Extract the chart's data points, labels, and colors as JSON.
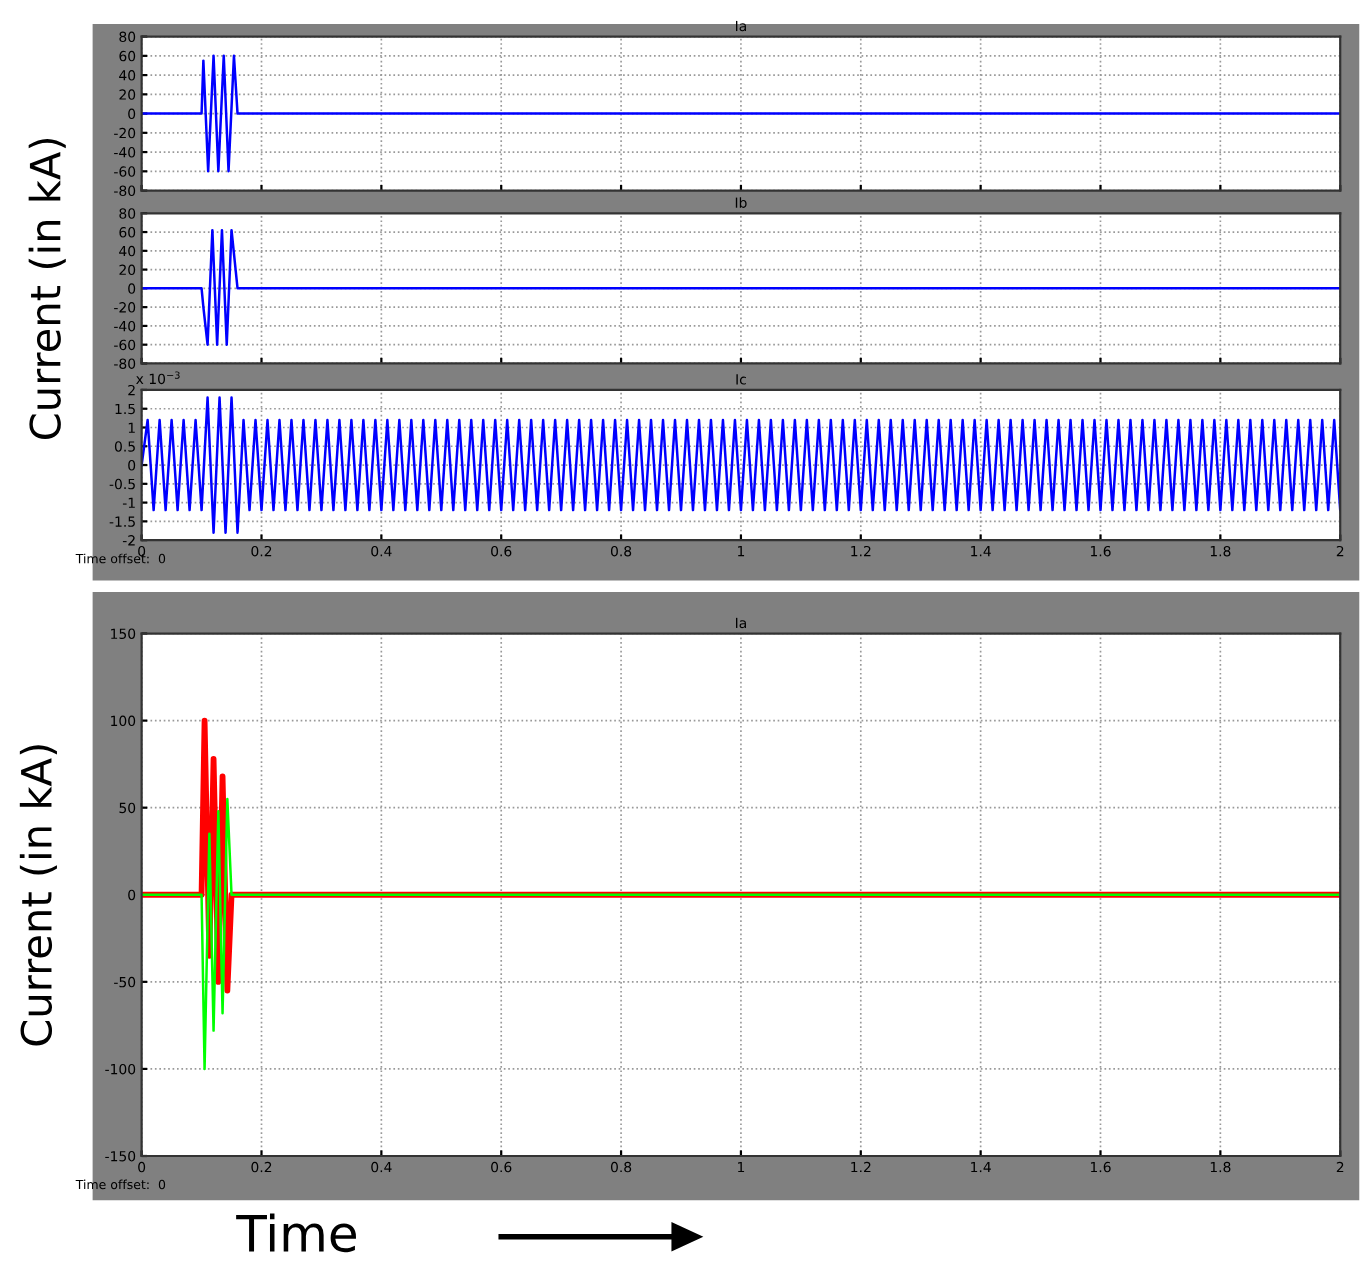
{
  "chart_data": [
    {
      "type": "line",
      "title": "Ia",
      "xlim": [
        0,
        2
      ],
      "ylim": [
        -80,
        80
      ],
      "xticks": [
        0,
        0.2,
        0.4,
        0.6,
        0.8,
        1,
        1.2,
        1.4,
        1.6,
        1.8,
        2
      ],
      "yticks": [
        -80,
        -60,
        -40,
        -20,
        0,
        20,
        40,
        60,
        80
      ],
      "tick_labels": "y",
      "grid": true,
      "series": [
        {
          "color": "#0000ff",
          "x": [
            0,
            0.1,
            0.103,
            0.111,
            0.12,
            0.128,
            0.137,
            0.145,
            0.154,
            0.16,
            2
          ],
          "values": [
            0,
            0,
            55,
            -60,
            60,
            -60,
            60,
            -60,
            60,
            0,
            0
          ]
        }
      ]
    },
    {
      "type": "line",
      "title": "Ib",
      "ylabel": "Current (in kA)",
      "xlim": [
        0,
        2
      ],
      "ylim": [
        -80,
        80
      ],
      "xticks": [
        0,
        0.2,
        0.4,
        0.6,
        0.8,
        1,
        1.2,
        1.4,
        1.6,
        1.8,
        2
      ],
      "yticks": [
        -80,
        -60,
        -40,
        -20,
        0,
        20,
        40,
        60,
        80
      ],
      "tick_labels": "y",
      "grid": true,
      "series": [
        {
          "color": "#0000ff",
          "x": [
            0,
            0.1,
            0.103,
            0.11,
            0.118,
            0.126,
            0.134,
            0.142,
            0.15,
            0.16,
            2
          ],
          "values": [
            0,
            0,
            -20,
            -60,
            62,
            -60,
            62,
            -60,
            62,
            0,
            0
          ]
        }
      ]
    },
    {
      "type": "line",
      "title": "Ic",
      "xlim": [
        0,
        2
      ],
      "ylim": [
        -2,
        2
      ],
      "xticks": [
        0,
        0.2,
        0.4,
        0.6,
        0.8,
        1,
        1.2,
        1.4,
        1.6,
        1.8,
        2
      ],
      "yticks": [
        -2,
        -1.5,
        -1,
        -0.5,
        0,
        0.5,
        1,
        1.5,
        2
      ],
      "grid": true,
      "annotations": [
        "x 10$^{−3}$",
        "Time offset:  0"
      ],
      "series": [
        {
          "color": "#0000ff",
          "x": [
            0,
            0.01,
            0.02,
            0.03,
            0.04,
            0.05,
            0.06,
            0.07,
            0.08,
            0.09,
            0.1,
            0.11,
            0.12,
            0.13,
            0.14,
            0.15,
            0.16,
            0.17,
            0.18,
            0.19,
            0.2,
            0.21,
            0.22,
            0.23,
            0.24,
            0.25,
            0.26,
            0.27,
            0.28,
            0.29,
            0.3,
            0.31,
            0.32,
            0.33,
            0.34,
            0.35,
            0.36,
            0.37,
            0.38,
            0.39,
            0.4,
            0.41,
            0.42,
            0.43,
            0.44,
            0.45,
            0.46,
            0.47,
            0.48,
            0.49,
            0.5,
            0.51,
            0.52,
            0.53,
            0.54,
            0.55,
            0.56,
            0.57,
            0.58,
            0.59,
            0.6,
            0.61,
            0.62,
            0.63,
            0.64,
            0.65,
            0.66,
            0.67,
            0.68,
            0.69,
            0.7,
            0.71,
            0.72,
            0.73,
            0.74,
            0.75,
            0.76,
            0.77,
            0.78,
            0.79,
            0.8,
            0.81,
            0.82,
            0.83,
            0.84,
            0.85,
            0.86,
            0.87,
            0.88,
            0.89,
            0.9,
            0.91,
            0.92,
            0.93,
            0.94,
            0.95,
            0.96,
            0.97,
            0.98,
            0.99,
            1,
            1.01,
            1.02,
            1.03,
            1.04,
            1.05,
            1.06,
            1.07,
            1.08,
            1.09,
            1.1,
            1.11,
            1.12,
            1.13,
            1.14,
            1.15,
            1.16,
            1.17,
            1.18,
            1.19,
            1.2,
            1.21,
            1.22,
            1.23,
            1.24,
            1.25,
            1.26,
            1.27,
            1.28,
            1.29,
            1.3,
            1.31,
            1.32,
            1.33,
            1.34,
            1.35,
            1.36,
            1.37,
            1.38,
            1.39,
            1.4,
            1.41,
            1.42,
            1.43,
            1.44,
            1.45,
            1.46,
            1.47,
            1.48,
            1.49,
            1.5,
            1.51,
            1.52,
            1.53,
            1.54,
            1.55,
            1.56,
            1.57,
            1.58,
            1.59,
            1.6,
            1.61,
            1.62,
            1.63,
            1.64,
            1.65,
            1.66,
            1.67,
            1.68,
            1.69,
            1.7,
            1.71,
            1.72,
            1.73,
            1.74,
            1.75,
            1.76,
            1.77,
            1.78,
            1.79,
            1.8,
            1.81,
            1.82,
            1.83,
            1.84,
            1.85,
            1.86,
            1.87,
            1.88,
            1.89,
            1.9,
            1.91,
            1.92,
            1.93,
            1.94,
            1.95,
            1.96,
            1.97,
            1.98,
            1.99,
            2
          ],
          "values": [
            0,
            1.2,
            -1.2,
            1.2,
            -1.2,
            1.2,
            -1.2,
            1.2,
            -1.2,
            1.2,
            -1.2,
            1.8,
            -1.8,
            1.8,
            -1.8,
            1.8,
            -1.8,
            1.2,
            -1.2,
            1.2,
            -1.2,
            1.2,
            -1.2,
            1.2,
            -1.2,
            1.2,
            -1.2,
            1.2,
            -1.2,
            1.2,
            -1.2,
            1.2,
            -1.2,
            1.2,
            -1.2,
            1.2,
            -1.2,
            1.2,
            -1.2,
            1.2,
            -1.2,
            1.2,
            -1.2,
            1.2,
            -1.2,
            1.2,
            -1.2,
            1.2,
            -1.2,
            1.2,
            -1.2,
            1.2,
            -1.2,
            1.2,
            -1.2,
            1.2,
            -1.2,
            1.2,
            -1.2,
            1.2,
            -1.2,
            1.2,
            -1.2,
            1.2,
            -1.2,
            1.2,
            -1.2,
            1.2,
            -1.2,
            1.2,
            -1.2,
            1.2,
            -1.2,
            1.2,
            -1.2,
            1.2,
            -1.2,
            1.2,
            -1.2,
            1.2,
            -1.2,
            1.2,
            -1.2,
            1.2,
            -1.2,
            1.2,
            -1.2,
            1.2,
            -1.2,
            1.2,
            -1.2,
            1.2,
            -1.2,
            1.2,
            -1.2,
            1.2,
            -1.2,
            1.2,
            -1.2,
            1.2,
            -1.2,
            1.2,
            -1.2,
            1.2,
            -1.2,
            1.2,
            -1.2,
            1.2,
            -1.2,
            1.2,
            -1.2,
            1.2,
            -1.2,
            1.2,
            -1.2,
            1.2,
            -1.2,
            1.2,
            -1.2,
            1.2,
            -1.2,
            1.2,
            -1.2,
            1.2,
            -1.2,
            1.2,
            -1.2,
            1.2,
            -1.2,
            1.2,
            -1.2,
            1.2,
            -1.2,
            1.2,
            -1.2,
            1.2,
            -1.2,
            1.2,
            -1.2,
            1.2,
            -1.2,
            1.2,
            -1.2,
            1.2,
            -1.2,
            1.2,
            -1.2,
            1.2,
            -1.2,
            1.2,
            -1.2,
            1.2,
            -1.2,
            1.2,
            -1.2,
            1.2,
            -1.2,
            1.2,
            -1.2,
            1.2,
            -1.2,
            1.2,
            -1.2,
            1.2,
            -1.2,
            1.2,
            -1.2,
            1.2,
            -1.2,
            1.2,
            -1.2,
            1.2,
            -1.2,
            1.2,
            -1.2,
            1.2,
            -1.2,
            1.2,
            -1.2,
            1.2,
            -1.2,
            1.2,
            -1.2,
            1.2,
            -1.2,
            1.2,
            -1.2,
            1.2,
            -1.2,
            1.2,
            -1.2,
            1.2,
            -1.2,
            1.2,
            -1.2,
            1.2,
            -1.2,
            1.2,
            -1.2,
            1.2,
            -1.2
          ]
        }
      ]
    },
    {
      "type": "line",
      "title": "Ia",
      "ylabel": "Current (in kA)",
      "xlabel": "Time",
      "xlim": [
        0,
        2
      ],
      "ylim": [
        -150,
        150
      ],
      "xticks": [
        0,
        0.2,
        0.4,
        0.6,
        0.8,
        1,
        1.2,
        1.4,
        1.6,
        1.8,
        2
      ],
      "yticks": [
        -150,
        -100,
        -50,
        0,
        50,
        100,
        150
      ],
      "grid": true,
      "annotations": [
        "Time offset:  0"
      ],
      "series": [
        {
          "color": "#ff0000",
          "x": [
            0,
            0.1,
            0.105,
            0.113,
            0.12,
            0.128,
            0.135,
            0.143,
            0.15,
            0.16,
            2
          ],
          "values": [
            0,
            0,
            100,
            -35,
            78,
            -50,
            68,
            -55,
            0,
            0,
            0
          ]
        },
        {
          "color": "#00ff00",
          "x": [
            0,
            0.1,
            0.105,
            0.113,
            0.12,
            0.128,
            0.135,
            0.143,
            0.15,
            0.16,
            2
          ],
          "values": [
            0,
            0,
            -100,
            35,
            -78,
            48,
            -68,
            55,
            0,
            0,
            0
          ]
        }
      ]
    }
  ]
}
